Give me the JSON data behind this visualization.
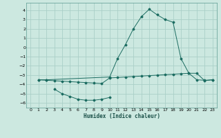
{
  "xlabel": "Humidex (Indice chaleur)",
  "bg_color": "#cce8e0",
  "grid_color": "#aacfc8",
  "line_color": "#1a6b60",
  "xlim": [
    -0.5,
    23.5
  ],
  "ylim": [
    -6.5,
    4.8
  ],
  "xticks": [
    0,
    1,
    2,
    3,
    4,
    5,
    6,
    7,
    8,
    9,
    10,
    11,
    12,
    13,
    14,
    15,
    16,
    17,
    18,
    19,
    20,
    21,
    22,
    23
  ],
  "yticks": [
    -6,
    -5,
    -4,
    -3,
    -2,
    -1,
    0,
    1,
    2,
    3,
    4
  ],
  "line1_x": [
    1,
    2,
    10,
    11,
    12,
    13,
    14,
    15,
    16,
    17,
    18,
    19,
    20,
    21,
    22,
    23
  ],
  "line1_y": [
    -3.5,
    -3.5,
    -3.2,
    -1.2,
    0.3,
    2.0,
    3.3,
    4.1,
    3.5,
    3.0,
    2.7,
    -1.2,
    -2.8,
    -2.8,
    -3.6,
    -3.5
  ],
  "line2_x": [
    1,
    2,
    3,
    4,
    5,
    6,
    7,
    8,
    9,
    10,
    11,
    12,
    13,
    14,
    15,
    16,
    17,
    18,
    19,
    20,
    21,
    22,
    23
  ],
  "line2_y": [
    -3.5,
    -3.55,
    -3.6,
    -3.65,
    -3.7,
    -3.75,
    -3.8,
    -3.85,
    -3.9,
    -3.3,
    -3.25,
    -3.2,
    -3.15,
    -3.1,
    -3.05,
    -3.0,
    -2.95,
    -2.9,
    -2.85,
    -2.8,
    -3.5,
    -3.55,
    -3.5
  ],
  "line3_x": [
    3,
    4,
    5,
    6,
    7,
    8,
    9,
    10
  ],
  "line3_y": [
    -4.5,
    -5.0,
    -5.3,
    -5.6,
    -5.7,
    -5.7,
    -5.6,
    -5.4
  ]
}
